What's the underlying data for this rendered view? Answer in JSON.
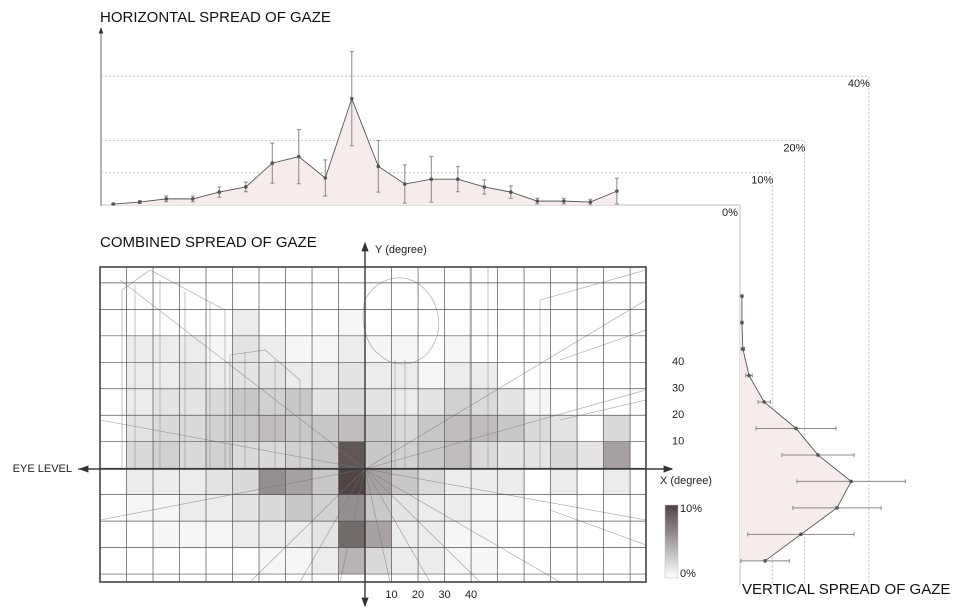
{
  "chart_data": [
    {
      "type": "line",
      "orientation": "horizontal",
      "title": "HORIZONTAL SPREAD OF GAZE",
      "x": [
        -95,
        -85,
        -75,
        -65,
        -55,
        -45,
        -35,
        -25,
        -15,
        -5,
        5,
        15,
        25,
        35,
        45,
        55,
        65,
        75,
        85,
        95
      ],
      "values": [
        0.3,
        0.9,
        1.9,
        1.9,
        4,
        5.6,
        13,
        15,
        8.4,
        33,
        12,
        6.5,
        8,
        8,
        5.6,
        4,
        1.2,
        1.2,
        0.9,
        4.3
      ],
      "errors": [
        0.3,
        0.4,
        0.9,
        0.9,
        1.6,
        1.5,
        6.2,
        8.4,
        5.6,
        14.6,
        8,
        5.9,
        7.1,
        3.9,
        2.2,
        1.9,
        0.9,
        0.9,
        0.9,
        4
      ],
      "color": "#555555",
      "xlim": [
        -100,
        106
      ],
      "ylim": [
        0,
        45
      ],
      "yticks": [
        {
          "value": 0,
          "label": "0%"
        },
        {
          "value": 10,
          "label": "10%"
        },
        {
          "value": 20,
          "label": "20%"
        },
        {
          "value": 40,
          "label": "40%"
        }
      ]
    },
    {
      "type": "heatmap",
      "title": "COMBINED SPREAD OF GAZE",
      "xlabel": "X (degree)",
      "ylabel": "Y (degree)",
      "annotation": "EYE LEVEL",
      "xlim": [
        -100,
        106
      ],
      "ylim": [
        -43,
        76
      ],
      "xbins": [
        -100,
        -90,
        -80,
        -70,
        -60,
        -50,
        -40,
        -30,
        -20,
        -10,
        0,
        10,
        20,
        30,
        40,
        50,
        60,
        70,
        80,
        90,
        100
      ],
      "ybins": [
        70,
        60,
        50,
        40,
        30,
        20,
        10,
        0,
        -10,
        -20,
        -30,
        -40
      ],
      "values": [
        [
          0,
          0,
          0,
          0,
          0,
          0,
          0,
          0,
          0,
          0,
          0,
          0,
          0,
          0,
          0,
          0,
          0,
          0,
          0,
          0
        ],
        [
          0,
          0,
          0,
          0,
          0,
          1,
          0,
          0,
          0,
          0.5,
          0,
          0,
          0,
          0,
          0,
          0,
          0,
          0,
          0,
          0
        ],
        [
          0,
          1,
          1,
          1,
          0.5,
          1.5,
          1,
          0.5,
          0.5,
          1,
          0.5,
          0.5,
          0,
          0.5,
          0,
          0,
          0,
          0,
          0,
          0
        ],
        [
          0,
          1,
          1,
          1.5,
          1,
          1.5,
          1.5,
          1,
          1,
          1.5,
          1,
          1,
          0.5,
          1,
          1,
          0,
          0,
          0,
          0,
          0
        ],
        [
          0,
          1,
          1.5,
          1.5,
          2,
          3,
          2.5,
          3,
          1.5,
          2,
          1.5,
          1,
          1.5,
          2.5,
          2,
          1.5,
          0.5,
          0,
          0,
          0
        ],
        [
          0,
          1.5,
          2,
          2,
          2.5,
          3,
          3.5,
          3,
          3,
          3.5,
          3,
          2,
          3,
          3.5,
          3.5,
          3,
          2,
          1.5,
          0,
          2
        ],
        [
          0,
          2,
          2.5,
          2,
          2.5,
          2,
          2,
          2.5,
          3,
          9,
          3,
          2.5,
          3,
          3.5,
          2,
          1.5,
          1.5,
          2,
          1.5,
          5
        ],
        [
          0,
          1,
          1,
          1,
          1.5,
          2,
          6,
          5,
          3,
          10,
          5,
          3,
          2,
          1,
          1,
          1,
          0,
          1,
          0,
          1
        ],
        [
          0,
          0.5,
          0.5,
          1,
          1,
          1.5,
          2,
          3,
          2.5,
          6,
          3,
          1.5,
          1,
          1,
          0.5,
          0.5,
          0,
          0,
          0,
          0
        ],
        [
          0,
          0,
          0.5,
          0.5,
          0.5,
          1,
          1,
          1,
          1.5,
          8,
          5,
          1,
          1,
          0.5,
          0.5,
          0,
          0,
          0,
          0,
          0
        ],
        [
          0,
          0,
          0,
          0,
          0,
          0,
          0.5,
          0.5,
          1,
          4,
          2,
          1,
          1,
          0.5,
          0.5,
          0,
          0,
          0,
          0,
          0
        ]
      ],
      "xticks": [
        10,
        20,
        30,
        40
      ],
      "yticks": [
        10,
        20,
        30,
        40
      ],
      "cmap": [
        "#ffffff",
        "#4f4343"
      ],
      "clim": [
        0,
        10
      ],
      "cticks": [
        {
          "value": 10,
          "label": "10%"
        },
        {
          "value": 0,
          "label": "0%"
        }
      ]
    },
    {
      "type": "line",
      "orientation": "vertical",
      "title": "VERTICAL SPREAD OF GAZE",
      "y": [
        65,
        55,
        45,
        35,
        25,
        15,
        5,
        -5,
        -15,
        -25,
        -35
      ],
      "values": [
        0.6,
        0.6,
        0.9,
        2.8,
        7.5,
        17.4,
        24.2,
        34.5,
        30.1,
        18.9,
        7.8
      ],
      "errors": [
        0.3,
        0.3,
        0.5,
        1,
        1.9,
        12.4,
        11.2,
        16.8,
        13.7,
        16.5,
        7.5
      ],
      "color": "#555555",
      "xlim": [
        0,
        45
      ],
      "ylim": [
        -43,
        76
      ]
    }
  ]
}
